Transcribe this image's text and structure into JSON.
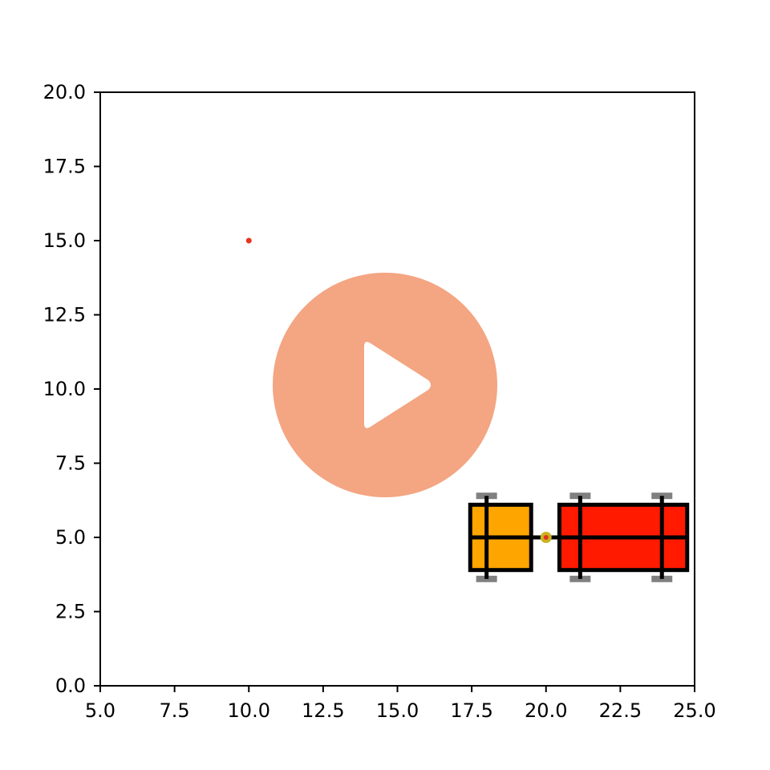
{
  "chart_data": {
    "type": "scatter",
    "title": "",
    "xlabel": "",
    "ylabel": "",
    "xlim": [
      5.0,
      25.0
    ],
    "ylim": [
      0.0,
      20.0
    ],
    "grid": false,
    "x_ticks": [
      "5.0",
      "7.5",
      "10.0",
      "12.5",
      "15.0",
      "17.5",
      "20.0",
      "22.5",
      "25.0"
    ],
    "y_ticks": [
      "0.0",
      "2.5",
      "5.0",
      "7.5",
      "10.0",
      "12.5",
      "15.0",
      "17.5",
      "20.0"
    ],
    "target_point": {
      "x": 10.0,
      "y": 15.0,
      "color": "#e8321e"
    },
    "vehicle": {
      "tractor": {
        "x_min": 20.45,
        "x_max": 24.75,
        "y_min": 3.9,
        "y_max": 6.1,
        "axles_x": [
          21.15,
          23.9
        ],
        "color": "#ff1a00"
      },
      "trailer": {
        "x_min": 17.45,
        "x_max": 19.5,
        "y_min": 3.9,
        "y_max": 6.1,
        "axles_x": [
          18.0
        ],
        "color": "#ffa500"
      },
      "hitch": {
        "x": 20.0,
        "y": 5.0,
        "color": "#c8b41e",
        "center_color": "#e8321e"
      },
      "wheel_y": [
        3.6,
        6.4
      ],
      "wheel_color": "#808080",
      "outline_color": "#000000"
    }
  },
  "overlay": {
    "icon": "play-icon",
    "circle_color": "#f4a582",
    "triangle_color": "#ffffff"
  }
}
